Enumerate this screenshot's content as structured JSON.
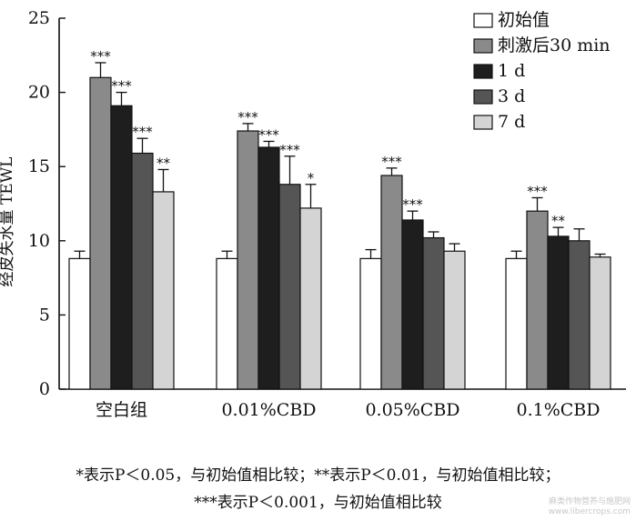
{
  "chart_data": {
    "type": "bar",
    "ylabel": "经皮失水量 TEWL",
    "ylim": [
      0,
      25
    ],
    "yticks": [
      0,
      5,
      10,
      15,
      20,
      25
    ],
    "categories": [
      "空白组",
      "0.01%CBD",
      "0.05%CBD",
      "0.1%CBD"
    ],
    "legend_position": "top-right",
    "grid": false,
    "series": [
      {
        "name": "初始值",
        "color": "#ffffff",
        "values": [
          8.8,
          8.8,
          8.8,
          8.8
        ],
        "errors": [
          0.5,
          0.5,
          0.6,
          0.5
        ],
        "sig": [
          "",
          "",
          "",
          ""
        ]
      },
      {
        "name": "刺激后30 min",
        "color": "#8a8a8a",
        "values": [
          21.0,
          17.4,
          14.4,
          12.0
        ],
        "errors": [
          1.0,
          0.5,
          0.5,
          0.9
        ],
        "sig": [
          "***",
          "***",
          "***",
          "***"
        ]
      },
      {
        "name": "1 d",
        "color": "#1e1e1e",
        "values": [
          19.1,
          16.3,
          11.4,
          10.3
        ],
        "errors": [
          0.9,
          0.4,
          0.6,
          0.6
        ],
        "sig": [
          "***",
          "***",
          "***",
          "**"
        ]
      },
      {
        "name": "3 d",
        "color": "#555555",
        "values": [
          15.9,
          13.8,
          10.2,
          10.0
        ],
        "errors": [
          1.0,
          1.9,
          0.4,
          0.8
        ],
        "sig": [
          "***",
          "***",
          "",
          ""
        ]
      },
      {
        "name": "7 d",
        "color": "#d4d4d4",
        "values": [
          13.3,
          12.2,
          9.3,
          8.9
        ],
        "errors": [
          1.5,
          1.6,
          0.5,
          0.2
        ],
        "sig": [
          "**",
          "*",
          "",
          ""
        ]
      }
    ]
  },
  "footnote": {
    "line1": "*表示P＜0.05，与初始值相比较；**表示P＜0.01，与初始值相比较；",
    "line2": "***表示P＜0.001，与初始值相比较"
  },
  "watermark": {
    "line1": "麻类作物营养与施肥网",
    "line2": "www.libercrops.com"
  }
}
